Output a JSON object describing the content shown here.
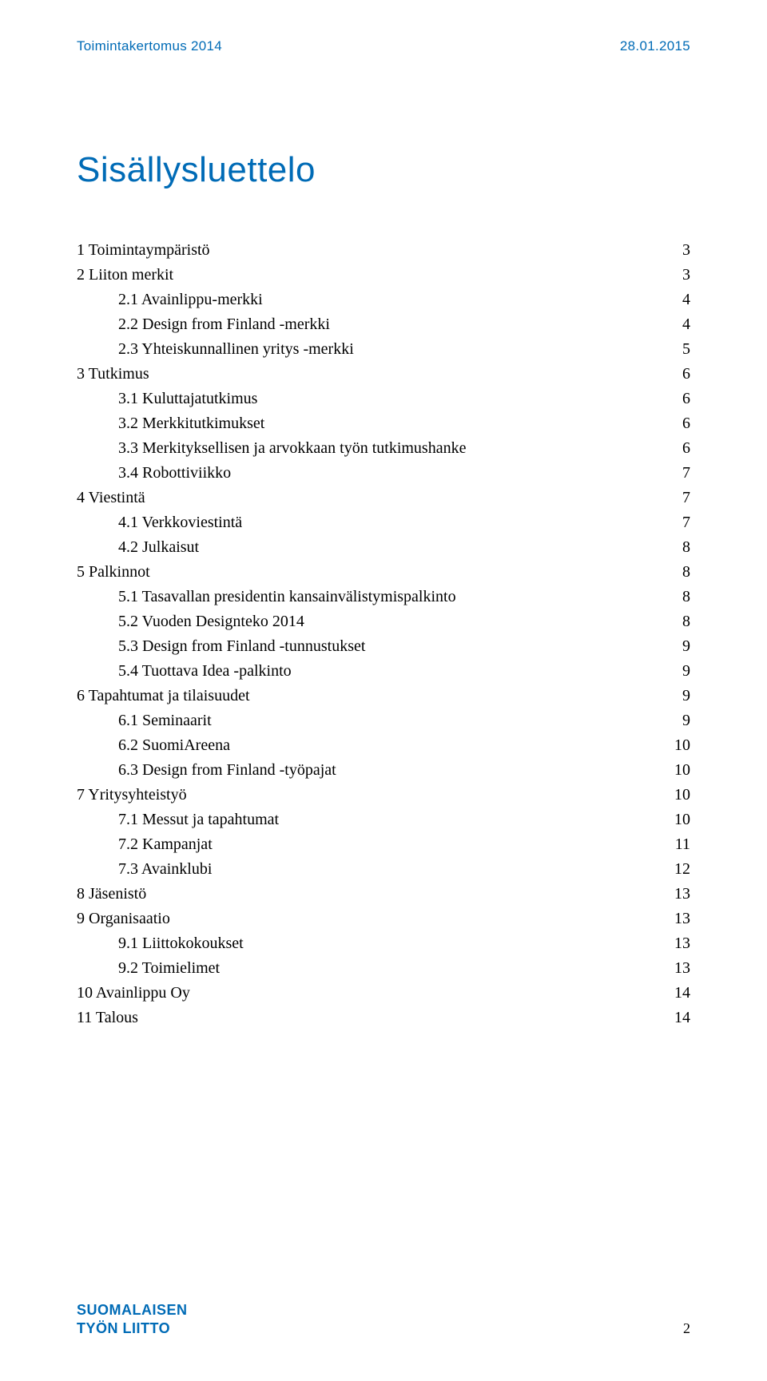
{
  "colors": {
    "brand_blue": "#006bb6",
    "text_black": "#000000",
    "page_bg": "#ffffff"
  },
  "typography": {
    "header_font": "Arial, Helvetica, sans-serif",
    "body_font": "Georgia, 'Times New Roman', serif",
    "header_size_pt": 13,
    "title_size_pt": 33,
    "toc_size_pt": 15,
    "footer_logo_size_pt": 14
  },
  "header": {
    "left": "Toimintakertomus 2014",
    "right": "28.01.2015"
  },
  "title": "Sisällysluettelo",
  "toc": [
    {
      "indent": 0,
      "label": "1 Toimintaympäristö",
      "page": "3"
    },
    {
      "indent": 0,
      "label": "2 Liiton merkit",
      "page": "3"
    },
    {
      "indent": 1,
      "label": "2.1 Avainlippu-merkki",
      "page": "4"
    },
    {
      "indent": 1,
      "label": "2.2 Design from Finland -merkki",
      "page": "4"
    },
    {
      "indent": 1,
      "label": "2.3 Yhteiskunnallinen yritys -merkki",
      "page": "5"
    },
    {
      "indent": 0,
      "label": "3 Tutkimus",
      "page": "6"
    },
    {
      "indent": 1,
      "label": "3.1 Kuluttajatutkimus",
      "page": "6"
    },
    {
      "indent": 1,
      "label": "3.2 Merkkitutkimukset",
      "page": "6"
    },
    {
      "indent": 1,
      "label": "3.3 Merkityksellisen ja arvokkaan työn tutkimushanke",
      "page": "6"
    },
    {
      "indent": 1,
      "label": "3.4 Robottiviikko",
      "page": "7"
    },
    {
      "indent": 0,
      "label": "4 Viestintä",
      "page": "7"
    },
    {
      "indent": 1,
      "label": "4.1 Verkkoviestintä",
      "page": "7"
    },
    {
      "indent": 1,
      "label": "4.2 Julkaisut",
      "page": "8"
    },
    {
      "indent": 0,
      "label": "5 Palkinnot",
      "page": "8"
    },
    {
      "indent": 1,
      "label": "5.1 Tasavallan presidentin kansainvälistymispalkinto",
      "page": "8"
    },
    {
      "indent": 1,
      "label": "5.2 Vuoden Designteko 2014",
      "page": "8"
    },
    {
      "indent": 1,
      "label": "5.3 Design from Finland -tunnustukset",
      "page": "9"
    },
    {
      "indent": 1,
      "label": "5.4 Tuottava Idea -palkinto",
      "page": "9"
    },
    {
      "indent": 0,
      "label": "6 Tapahtumat ja tilaisuudet",
      "page": "9"
    },
    {
      "indent": 1,
      "label": "6.1 Seminaarit",
      "page": "9"
    },
    {
      "indent": 1,
      "label": "6.2 SuomiAreena",
      "page": "10"
    },
    {
      "indent": 1,
      "label": "6.3 Design from Finland -työpajat",
      "page": "10"
    },
    {
      "indent": 0,
      "label": "7 Yritysyhteistyö",
      "page": "10"
    },
    {
      "indent": 1,
      "label": "7.1 Messut ja tapahtumat",
      "page": "10"
    },
    {
      "indent": 1,
      "label": "7.2 Kampanjat",
      "page": "11"
    },
    {
      "indent": 1,
      "label": "7.3 Avainklubi",
      "page": "12"
    },
    {
      "indent": 0,
      "label": "8 Jäsenistö",
      "page": "13"
    },
    {
      "indent": 0,
      "label": "9 Organisaatio",
      "page": "13"
    },
    {
      "indent": 1,
      "label": "9.1 Liittokokoukset",
      "page": "13"
    },
    {
      "indent": 1,
      "label": "9.2 Toimielimet",
      "page": "13"
    },
    {
      "indent": 0,
      "label": "10 Avainlippu Oy",
      "page": "14"
    },
    {
      "indent": 0,
      "label": "11 Talous",
      "page": "14"
    }
  ],
  "footer": {
    "logo_line1": "SUOMALAISEN",
    "logo_line2": "TYÖN LIITTO",
    "page_number": "2"
  }
}
